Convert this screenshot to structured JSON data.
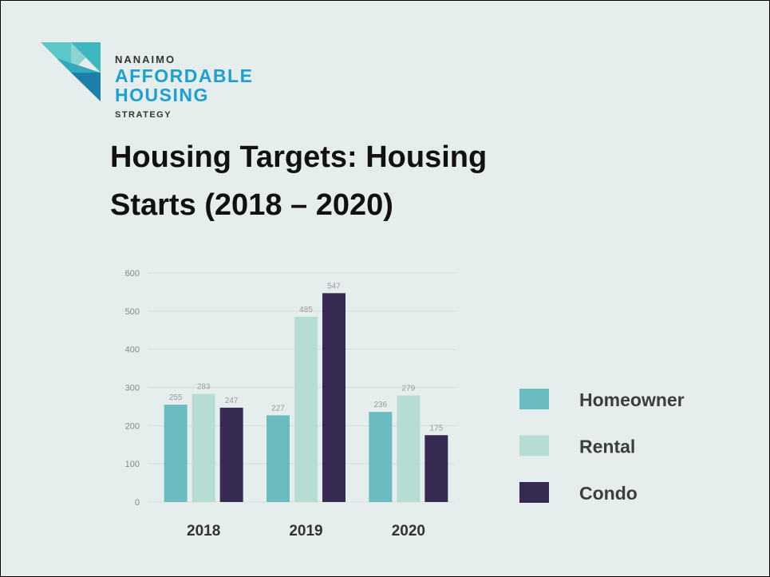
{
  "logo": {
    "line1": "NANAIMO",
    "line2": "AFFORDABLE",
    "line3": "HOUSING",
    "line4": "STRATEGY"
  },
  "chart_data": {
    "type": "bar",
    "title": "Housing Targets: Housing Starts (2018 – 2020)",
    "categories": [
      "2018",
      "2019",
      "2020"
    ],
    "series": [
      {
        "name": "Homeowner",
        "color": "#6bbcc0",
        "values": [
          255,
          227,
          236
        ]
      },
      {
        "name": "Rental",
        "color": "#b6ddd4",
        "values": [
          283,
          485,
          279
        ]
      },
      {
        "name": "Condo",
        "color": "#372a52",
        "values": [
          247,
          547,
          175
        ]
      }
    ],
    "ylim": [
      0,
      600
    ],
    "yticks": [
      0,
      100,
      200,
      300,
      400,
      500,
      600
    ],
    "grid": true,
    "legend": "right"
  }
}
